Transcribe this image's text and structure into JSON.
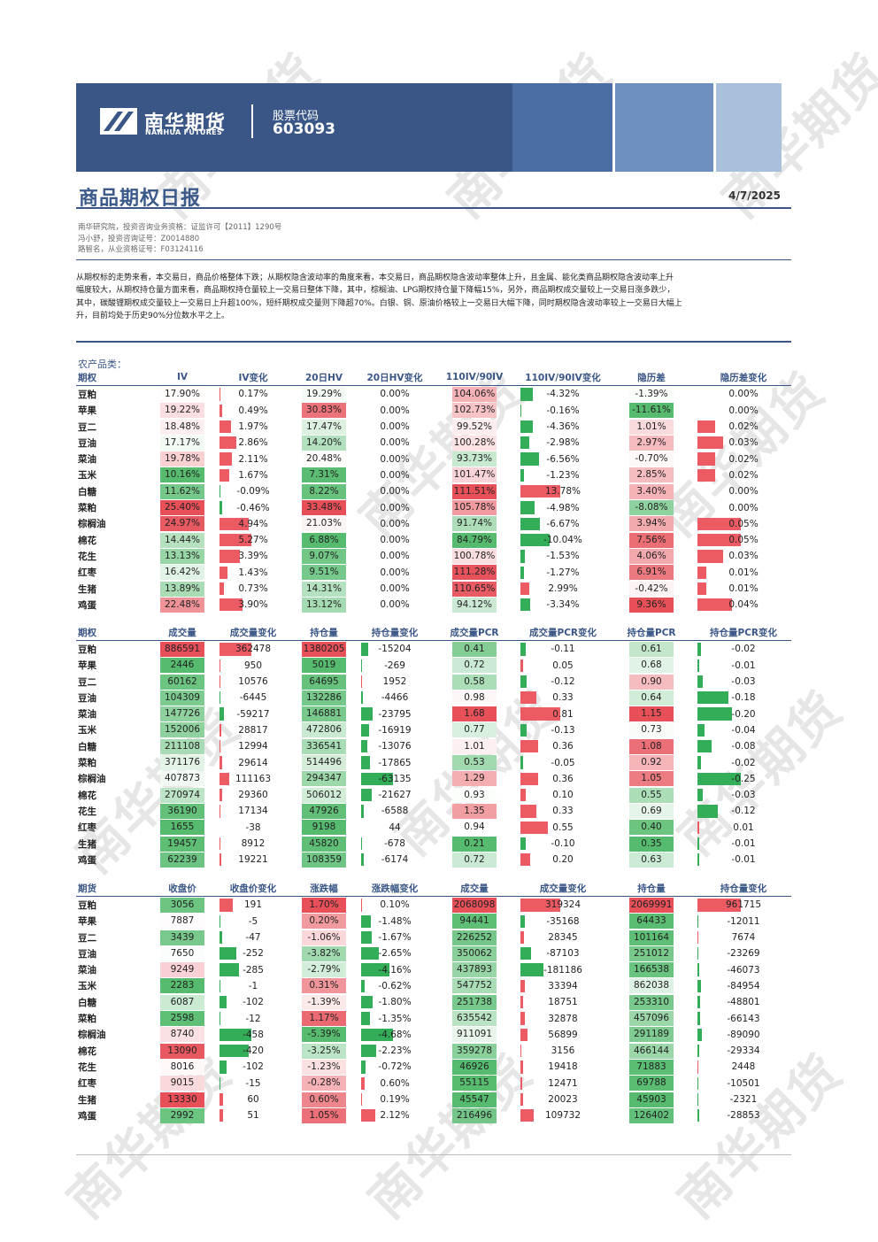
{
  "header": {
    "logo_cn": "南华期货",
    "logo_en": "NANHUA FUTURES",
    "code_label": "股票代码",
    "code_value": "603093",
    "title": "商品期权日报",
    "date": "4/7/2025",
    "brand_color": "#3a5686"
  },
  "authors": {
    "line1": "南华研究院，投资咨询业务资格：证监许可【2011】1290号",
    "line2": "冯小舒，投资咨询证号：Z0014880",
    "line3": "路智名，从业资格证号：F03124116"
  },
  "summary": {
    "line1": "从期权标的走势来看，本交易日，商品价格整体下跌；从期权隐含波动率的角度来看，本交易日，商品期权隐含波动率整体上升，且金属、能化类商品期权隐含波动率上升",
    "line2": "幅度较大，从期权持仓量方面来看，商品期权持仓量较上一交易日整体下降，其中，棕榈油、LPG期权持仓量下降幅15%，另外，商品期权成交量较上一交易日涨多跌少，",
    "line3": "其中，碳酸锂期权成交量较上一交易日上升超100%，短纤期权成交量则下降超70%。白银、铜、原油价格较上一交易日大幅下降，同时期权隐含波动率较上一交易日大幅上",
    "line4": "升，目前均处于历史90%分位数水平之上。"
  },
  "section_title": "农产品类：",
  "watermark": "南华期货",
  "table1": {
    "headers": [
      "期权",
      "IV",
      "IV变化",
      "20日HV",
      "20日HV变化",
      "110IV/90IV",
      "110IV/90IV变化",
      "隐历差",
      "隐历差变化"
    ],
    "rows": [
      [
        "豆粕",
        "17.90%",
        "0.17%",
        "19.29%",
        "0.00%",
        "104.06%",
        "-4.32%",
        "-1.39%",
        "0.00%"
      ],
      [
        "苹果",
        "19.22%",
        "0.49%",
        "30.83%",
        "0.00%",
        "102.73%",
        "-0.16%",
        "-11.61%",
        "0.00%"
      ],
      [
        "豆二",
        "18.48%",
        "1.97%",
        "17.47%",
        "0.00%",
        "99.52%",
        "-4.36%",
        "1.01%",
        "0.02%"
      ],
      [
        "豆油",
        "17.17%",
        "2.86%",
        "14.20%",
        "0.00%",
        "100.28%",
        "-2.98%",
        "2.97%",
        "0.03%"
      ],
      [
        "菜油",
        "19.78%",
        "2.11%",
        "20.48%",
        "0.00%",
        "93.73%",
        "-6.56%",
        "-0.70%",
        "0.02%"
      ],
      [
        "玉米",
        "10.16%",
        "1.67%",
        "7.31%",
        "0.00%",
        "101.47%",
        "-1.23%",
        "2.85%",
        "0.02%"
      ],
      [
        "白糖",
        "11.62%",
        "-0.09%",
        "8.22%",
        "0.00%",
        "111.51%",
        "13.78%",
        "3.40%",
        "0.00%"
      ],
      [
        "菜粕",
        "25.40%",
        "-0.46%",
        "33.48%",
        "0.00%",
        "105.78%",
        "-4.98%",
        "-8.08%",
        "0.00%"
      ],
      [
        "棕榈油",
        "24.97%",
        "4.94%",
        "21.03%",
        "0.00%",
        "91.74%",
        "-6.67%",
        "3.94%",
        "0.05%"
      ],
      [
        "棉花",
        "14.44%",
        "5.27%",
        "6.88%",
        "0.00%",
        "84.79%",
        "-10.04%",
        "7.56%",
        "0.05%"
      ],
      [
        "花生",
        "13.13%",
        "3.39%",
        "9.07%",
        "0.00%",
        "100.78%",
        "-1.53%",
        "4.06%",
        "0.03%"
      ],
      [
        "红枣",
        "16.42%",
        "1.43%",
        "9.51%",
        "0.00%",
        "111.28%",
        "-1.27%",
        "6.91%",
        "0.01%"
      ],
      [
        "生猪",
        "13.89%",
        "0.73%",
        "14.31%",
        "0.00%",
        "110.65%",
        "2.99%",
        "-0.42%",
        "0.01%"
      ],
      [
        "鸡蛋",
        "22.48%",
        "3.90%",
        "13.12%",
        "0.00%",
        "94.12%",
        "-3.34%",
        "9.36%",
        "0.04%"
      ]
    ]
  },
  "table2": {
    "headers": [
      "期权",
      "成交量",
      "成交量变化",
      "持仓量",
      "持仓量变化",
      "成交量PCR",
      "成交量PCR变化",
      "持仓量PCR",
      "持仓量PCR变化"
    ],
    "rows": [
      [
        "豆粕",
        "886591",
        "362478",
        "1380205",
        "-15204",
        "0.41",
        "-0.11",
        "0.61",
        "-0.02"
      ],
      [
        "苹果",
        "2446",
        "950",
        "5019",
        "-269",
        "0.72",
        "0.05",
        "0.68",
        "-0.01"
      ],
      [
        "豆二",
        "60162",
        "10576",
        "64695",
        "1952",
        "0.58",
        "-0.12",
        "0.90",
        "-0.03"
      ],
      [
        "豆油",
        "104309",
        "-6445",
        "132286",
        "-4466",
        "0.98",
        "0.33",
        "0.64",
        "-0.18"
      ],
      [
        "菜油",
        "147726",
        "-59217",
        "146881",
        "-23795",
        "1.68",
        "0.81",
        "1.15",
        "-0.20"
      ],
      [
        "玉米",
        "152006",
        "28817",
        "472806",
        "-16919",
        "0.77",
        "-0.13",
        "0.73",
        "-0.04"
      ],
      [
        "白糖",
        "211108",
        "12994",
        "336541",
        "-13076",
        "1.01",
        "0.36",
        "1.08",
        "-0.08"
      ],
      [
        "菜粕",
        "371176",
        "29614",
        "514496",
        "-17865",
        "0.53",
        "-0.05",
        "0.92",
        "-0.02"
      ],
      [
        "棕榈油",
        "407873",
        "111163",
        "294347",
        "-63135",
        "1.29",
        "0.36",
        "1.05",
        "-0.25"
      ],
      [
        "棉花",
        "270974",
        "29360",
        "506012",
        "-21627",
        "0.93",
        "0.10",
        "0.55",
        "-0.03"
      ],
      [
        "花生",
        "36190",
        "17134",
        "47926",
        "-6588",
        "1.35",
        "0.33",
        "0.69",
        "-0.12"
      ],
      [
        "红枣",
        "1655",
        "-38",
        "9198",
        "44",
        "0.94",
        "0.55",
        "0.40",
        "0.01"
      ],
      [
        "生猪",
        "19457",
        "8912",
        "45820",
        "-678",
        "0.21",
        "-0.10",
        "0.35",
        "-0.01"
      ],
      [
        "鸡蛋",
        "62239",
        "19221",
        "108359",
        "-6174",
        "0.72",
        "0.20",
        "0.63",
        "-0.01"
      ]
    ]
  },
  "table3": {
    "headers": [
      "期货",
      "收盘价",
      "收盘价变化",
      "涨跌幅",
      "涨跌幅变化",
      "成交量",
      "成交量变化",
      "持仓量",
      "持仓量变化"
    ],
    "rows": [
      [
        "豆粕",
        "3056",
        "191",
        "1.70%",
        "0.10%",
        "2068098",
        "319324",
        "2069991",
        "961715"
      ],
      [
        "苹果",
        "7887",
        "-5",
        "0.20%",
        "-1.48%",
        "94441",
        "-35168",
        "64433",
        "-12011"
      ],
      [
        "豆二",
        "3439",
        "-47",
        "-1.06%",
        "-1.67%",
        "226252",
        "28345",
        "101164",
        "7674"
      ],
      [
        "豆油",
        "7650",
        "-252",
        "-3.82%",
        "-2.65%",
        "350062",
        "-87103",
        "251012",
        "-23269"
      ],
      [
        "菜油",
        "9249",
        "-285",
        "-2.79%",
        "-4.16%",
        "437893",
        "-181186",
        "166538",
        "-46073"
      ],
      [
        "玉米",
        "2283",
        "-1",
        "0.31%",
        "-0.62%",
        "547752",
        "33394",
        "862038",
        "-84954"
      ],
      [
        "白糖",
        "6087",
        "-102",
        "-1.39%",
        "-1.80%",
        "251738",
        "18751",
        "253310",
        "-48801"
      ],
      [
        "菜粕",
        "2598",
        "-12",
        "1.17%",
        "-1.35%",
        "635542",
        "32878",
        "457096",
        "-66143"
      ],
      [
        "棕榈油",
        "8740",
        "-458",
        "-5.39%",
        "-4.68%",
        "911091",
        "56899",
        "291189",
        "-89090"
      ],
      [
        "棉花",
        "13090",
        "-420",
        "-3.25%",
        "-2.23%",
        "359278",
        "3156",
        "466144",
        "-29334"
      ],
      [
        "花生",
        "8016",
        "-102",
        "-1.23%",
        "-0.72%",
        "46926",
        "19418",
        "71883",
        "2448"
      ],
      [
        "红枣",
        "9015",
        "-15",
        "-0.28%",
        "0.60%",
        "55115",
        "12471",
        "69788",
        "-10501"
      ],
      [
        "生猪",
        "13330",
        "60",
        "0.60%",
        "0.19%",
        "45547",
        "20023",
        "45903",
        "-2321"
      ],
      [
        "鸡蛋",
        "2992",
        "51",
        "1.05%",
        "2.12%",
        "216496",
        "109732",
        "126402",
        "-28853"
      ]
    ]
  }
}
